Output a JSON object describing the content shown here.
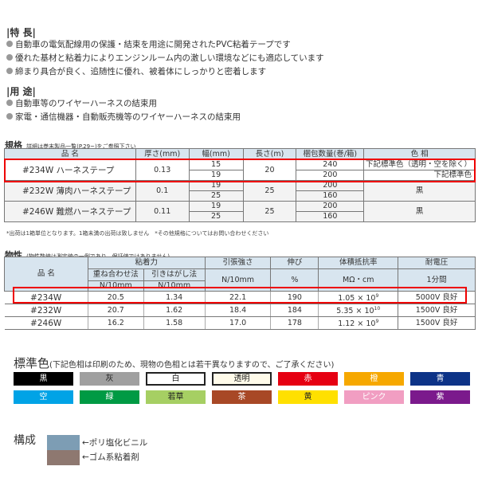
{
  "features": {
    "title": "|特 長|",
    "items": [
      "自動車の電気配線用の保護・結束を用途に開発されたPVC粘着テープです",
      "優れた基材と粘着力によりエンジンルーム内の激しい環境などにも適応しています",
      "締まり具合が良く、追随性に優れ、被着体にしっかりと密着します"
    ]
  },
  "uses": {
    "title": "|用 途|",
    "items": [
      "自動車等のワイヤーハーネスの結束用",
      "家電・通信機器・自動販売機等のワイヤーハーネスの結束用"
    ]
  },
  "spec": {
    "title": "規格",
    "subtitle": "詳細は巻末製品一覧(P.29~)をご参照下さい",
    "headers": [
      "品 名",
      "厚さ(mm)",
      "幅(mm)",
      "長さ(m)",
      "梱包数量(巻/箱)",
      "色 相"
    ],
    "products": [
      {
        "name": "#234W ハーネステープ",
        "thickness": "0.13",
        "length": "20",
        "rows": [
          {
            "width": "15",
            "pack": "240",
            "color": "下記標準色（透明・空を除く）"
          },
          {
            "width": "19",
            "pack": "200",
            "color": "下記標準色"
          }
        ]
      },
      {
        "name": "#232W 薄肉ハーネステープ",
        "thickness": "0.1",
        "length": "25",
        "color": "黒",
        "rows": [
          {
            "width": "19",
            "pack": "200"
          },
          {
            "width": "25",
            "pack": "160"
          }
        ]
      },
      {
        "name": "#246W 難燃ハーネステープ",
        "thickness": "0.11",
        "length": "25",
        "color": "黒",
        "rows": [
          {
            "width": "19",
            "pack": "200"
          },
          {
            "width": "25",
            "pack": "160"
          }
        ]
      }
    ],
    "note": "*出荷は1箱単位となります。1箱未満の出荷は致しません　*その他規格についてはお問い合わせください"
  },
  "props": {
    "title": "物性",
    "subtitle": "(物性数値は測定値の一例であり、保証値ではありません)",
    "h": {
      "name": "品 名",
      "adh": "粘着力",
      "overlap": "重ね合わせ法",
      "peel": "引きはがし法",
      "unit1": "N/10mm",
      "unit2": "N/10mm",
      "tensile": "引張強さ",
      "tensile_u": "N/10mm",
      "elong": "伸び",
      "elong_u": "%",
      "resist": "体積抵抗率",
      "resist_u": "MΩ・cm",
      "volt": "耐電圧",
      "volt_u": "1分間"
    },
    "rows": [
      {
        "name": "#234W",
        "overlap": "20.5",
        "peel": "1.34",
        "tensile": "22.1",
        "elong": "190",
        "resist": "1.05 × 10",
        "exp": "9",
        "volt": "5000V 良好"
      },
      {
        "name": "#232W",
        "overlap": "20.7",
        "peel": "1.62",
        "tensile": "18.4",
        "elong": "184",
        "resist": "5.35 × 10",
        "exp": "10",
        "volt": "1500V 良好"
      },
      {
        "name": "#246W",
        "overlap": "16.2",
        "peel": "1.58",
        "tensile": "17.0",
        "elong": "178",
        "resist": "1.12 × 10",
        "exp": "9",
        "volt": "1500V 良好"
      }
    ]
  },
  "colors": {
    "title": "標準色",
    "subtitle": "(下記色相は印刷のため、現物の色相とは若干異なりますので、ご了承ください)",
    "swatches": [
      {
        "label": "黒",
        "bg": "#000000",
        "fg": "#ffffff"
      },
      {
        "label": "灰",
        "bg": "#a0a0a0",
        "fg": "#222222"
      },
      {
        "label": "白",
        "bg": "#ffffff",
        "fg": "#222222",
        "border": true
      },
      {
        "label": "透明",
        "bg": "#fffbea",
        "fg": "#222222",
        "border": true
      },
      {
        "label": "赤",
        "bg": "#e60012",
        "fg": "#ffffff"
      },
      {
        "label": "橙",
        "bg": "#f6a800",
        "fg": "#ffffff"
      },
      {
        "label": "青",
        "bg": "#0d3387",
        "fg": "#ffffff"
      },
      {
        "label": "空",
        "bg": "#00a3e6",
        "fg": "#ffffff"
      },
      {
        "label": "緑",
        "bg": "#009a44",
        "fg": "#ffffff"
      },
      {
        "label": "若草",
        "bg": "#a6cf63",
        "fg": "#222222"
      },
      {
        "label": "茶",
        "bg": "#a84826",
        "fg": "#ffffff"
      },
      {
        "label": "黄",
        "bg": "#ffe000",
        "fg": "#222222"
      },
      {
        "label": "ピンク",
        "bg": "#f19ec2",
        "fg": "#ffffff"
      },
      {
        "label": "紫",
        "bg": "#7b1a8c",
        "fg": "#ffffff"
      }
    ]
  },
  "structure": {
    "title": "構成",
    "layers": [
      {
        "label": "←ポリ塩化ビニル",
        "color": "#7d9db4"
      },
      {
        "label": "←ゴム系粘着剤",
        "color": "#8e7870"
      }
    ]
  }
}
